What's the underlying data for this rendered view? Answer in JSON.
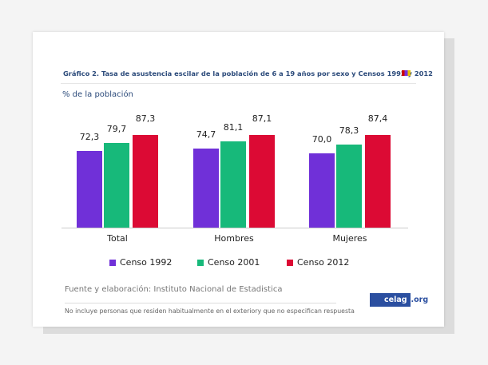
{
  "chart_data": {
    "type": "bar",
    "title": "Gráfico 2. Tasa de asustencia escilar de la población de 6 a 19 años por sexo y Censos 1992 y 2012",
    "ylabel": "% de la población",
    "xlabel": "",
    "categories": [
      "Total",
      "Hombres",
      "Mujeres"
    ],
    "series": [
      {
        "name": "Censo 1992",
        "color": "#7030d8",
        "values": [
          72.3,
          74.7,
          70.0
        ],
        "labels": [
          "72,3",
          "74,7",
          "70,0"
        ]
      },
      {
        "name": "Censo 2001",
        "color": "#17b97a",
        "values": [
          79.7,
          81.1,
          78.3
        ],
        "labels": [
          "79,7",
          "81,1",
          "78,3"
        ]
      },
      {
        "name": "Censo 2012",
        "color": "#dc0a34",
        "values": [
          87.3,
          87.1,
          87.4
        ],
        "labels": [
          "87,3",
          "87,1",
          "87,4"
        ]
      }
    ],
    "ylim": [
      0,
      100
    ],
    "grid": false,
    "legend": "bottom"
  },
  "footer": {
    "source": "Fuente y elaboración: Instituto Nacional de Estadistica",
    "note": "No incluye personas que residen habitualmente en el exteriory que no especifican respuesta",
    "logo_main": "celag",
    "logo_suffix": ".org"
  }
}
